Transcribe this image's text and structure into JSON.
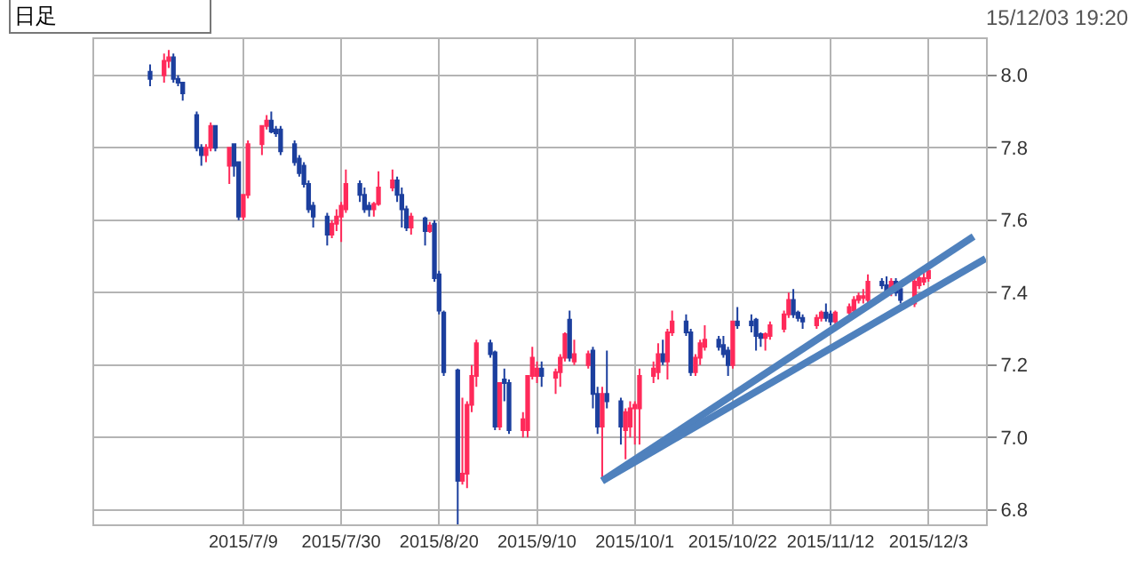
{
  "chart_data": {
    "type": "candlestick",
    "annotations": [
      "日足",
      "15/12/03 19:20"
    ],
    "x": [
      "2015-06-19",
      "2015-06-22",
      "2015-06-23",
      "2015-06-24",
      "2015-06-25",
      "2015-06-26",
      "2015-06-29",
      "2015-06-30",
      "2015-07-01",
      "2015-07-02",
      "2015-07-03",
      "2015-07-06",
      "2015-07-07",
      "2015-07-08",
      "2015-07-09",
      "2015-07-10",
      "2015-07-13",
      "2015-07-14",
      "2015-07-15",
      "2015-07-16",
      "2015-07-17",
      "2015-07-20",
      "2015-07-21",
      "2015-07-22",
      "2015-07-23",
      "2015-07-24",
      "2015-07-27",
      "2015-07-28",
      "2015-07-29",
      "2015-07-30",
      "2015-07-31",
      "2015-08-03",
      "2015-08-04",
      "2015-08-05",
      "2015-08-06",
      "2015-08-07",
      "2015-08-10",
      "2015-08-11",
      "2015-08-12",
      "2015-08-13",
      "2015-08-14",
      "2015-08-17",
      "2015-08-18",
      "2015-08-19",
      "2015-08-20",
      "2015-08-21",
      "2015-08-24",
      "2015-08-25",
      "2015-08-26",
      "2015-08-27",
      "2015-08-28",
      "2015-08-31",
      "2015-09-01",
      "2015-09-02",
      "2015-09-03",
      "2015-09-04",
      "2015-09-07",
      "2015-09-08",
      "2015-09-09",
      "2015-09-10",
      "2015-09-11",
      "2015-09-14",
      "2015-09-15",
      "2015-09-16",
      "2015-09-17",
      "2015-09-18",
      "2015-09-21",
      "2015-09-22",
      "2015-09-23",
      "2015-09-24",
      "2015-09-25",
      "2015-09-28",
      "2015-09-29",
      "2015-09-30",
      "2015-10-01",
      "2015-10-02",
      "2015-10-05",
      "2015-10-06",
      "2015-10-07",
      "2015-10-08",
      "2015-10-09",
      "2015-10-12",
      "2015-10-13",
      "2015-10-14",
      "2015-10-15",
      "2015-10-16",
      "2015-10-19",
      "2015-10-20",
      "2015-10-21",
      "2015-10-22",
      "2015-10-23",
      "2015-10-26",
      "2015-10-27",
      "2015-10-28",
      "2015-10-29",
      "2015-10-30",
      "2015-11-02",
      "2015-11-03",
      "2015-11-04",
      "2015-11-05",
      "2015-11-06",
      "2015-11-09",
      "2015-11-10",
      "2015-11-11",
      "2015-11-12",
      "2015-11-13",
      "2015-11-16",
      "2015-11-17",
      "2015-11-18",
      "2015-11-19",
      "2015-11-20",
      "2015-11-23",
      "2015-11-24",
      "2015-11-25",
      "2015-11-26",
      "2015-11-27",
      "2015-11-30",
      "2015-12-01",
      "2015-12-02",
      "2015-12-03"
    ],
    "ohlc": [
      [
        8.01,
        8.03,
        7.97,
        7.99
      ],
      [
        8.0,
        8.06,
        7.98,
        8.04
      ],
      [
        8.04,
        8.07,
        8.02,
        8.05
      ],
      [
        8.05,
        8.06,
        7.98,
        7.99
      ],
      [
        7.99,
        8.0,
        7.97,
        7.98
      ],
      [
        7.98,
        7.98,
        7.93,
        7.95
      ],
      [
        7.89,
        7.9,
        7.79,
        7.8
      ],
      [
        7.8,
        7.81,
        7.75,
        7.78
      ],
      [
        7.78,
        7.81,
        7.76,
        7.8
      ],
      [
        7.8,
        7.87,
        7.79,
        7.86
      ],
      [
        7.86,
        7.86,
        7.79,
        7.8
      ],
      [
        7.75,
        7.8,
        7.7,
        7.8
      ],
      [
        7.81,
        7.81,
        7.72,
        7.75
      ],
      [
        7.76,
        7.76,
        7.6,
        7.61
      ],
      [
        7.61,
        7.67,
        7.6,
        7.67
      ],
      [
        7.67,
        7.82,
        7.66,
        7.81
      ],
      [
        7.81,
        7.86,
        7.78,
        7.86
      ],
      [
        7.86,
        7.89,
        7.85,
        7.875
      ],
      [
        7.875,
        7.9,
        7.84,
        7.845
      ],
      [
        7.85,
        7.86,
        7.83,
        7.84
      ],
      [
        7.85,
        7.86,
        7.78,
        7.79
      ],
      [
        7.81,
        7.82,
        7.75,
        7.76
      ],
      [
        7.77,
        7.78,
        7.72,
        7.73
      ],
      [
        7.75,
        7.76,
        7.69,
        7.7
      ],
      [
        7.7,
        7.71,
        7.62,
        7.63
      ],
      [
        7.64,
        7.65,
        7.58,
        7.61
      ],
      [
        7.61,
        7.62,
        7.53,
        7.56
      ],
      [
        7.56,
        7.6,
        7.55,
        7.59
      ],
      [
        7.59,
        7.63,
        7.57,
        7.61
      ],
      [
        7.61,
        7.65,
        7.54,
        7.64
      ],
      [
        7.63,
        7.74,
        7.62,
        7.7
      ],
      [
        7.7,
        7.71,
        7.65,
        7.67
      ],
      [
        7.67,
        7.69,
        7.62,
        7.63
      ],
      [
        7.64,
        7.65,
        7.61,
        7.63
      ],
      [
        7.63,
        7.65,
        7.61,
        7.645
      ],
      [
        7.645,
        7.735,
        7.64,
        7.69
      ],
      [
        7.69,
        7.74,
        7.68,
        7.71
      ],
      [
        7.71,
        7.72,
        7.65,
        7.67
      ],
      [
        7.67,
        7.69,
        7.58,
        7.63
      ],
      [
        7.63,
        7.64,
        7.57,
        7.58
      ],
      [
        7.58,
        7.62,
        7.56,
        7.61
      ],
      [
        7.605,
        7.61,
        7.53,
        7.57
      ],
      [
        7.57,
        7.595,
        7.565,
        7.585
      ],
      [
        7.59,
        7.6,
        7.43,
        7.44
      ],
      [
        7.45,
        7.46,
        7.34,
        7.35
      ],
      [
        7.345,
        7.35,
        7.17,
        7.18
      ],
      [
        7.185,
        7.19,
        6.76,
        6.88
      ],
      [
        6.88,
        7.11,
        6.87,
        6.9
      ],
      [
        6.9,
        7.1,
        6.86,
        7.09
      ],
      [
        7.09,
        7.2,
        7.07,
        7.17
      ],
      [
        7.17,
        7.27,
        7.14,
        7.26
      ],
      [
        7.26,
        7.27,
        7.22,
        7.23
      ],
      [
        7.235,
        7.24,
        7.02,
        7.03
      ],
      [
        7.03,
        7.15,
        7.02,
        7.15
      ],
      [
        7.16,
        7.19,
        7.1,
        7.15
      ],
      [
        7.15,
        7.16,
        7.01,
        7.02
      ],
      [
        7.02,
        7.07,
        7.0,
        7.05
      ],
      [
        7.02,
        7.17,
        7.0,
        7.17
      ],
      [
        7.17,
        7.25,
        7.16,
        7.22
      ],
      [
        7.17,
        7.21,
        7.15,
        7.19
      ],
      [
        7.19,
        7.21,
        7.14,
        7.17
      ],
      [
        7.165,
        7.19,
        7.12,
        7.18
      ],
      [
        7.18,
        7.23,
        7.14,
        7.22
      ],
      [
        7.22,
        7.29,
        7.21,
        7.285
      ],
      [
        7.325,
        7.35,
        7.21,
        7.22
      ],
      [
        7.21,
        7.27,
        7.2,
        7.23
      ],
      [
        7.2,
        7.24,
        7.19,
        7.23
      ],
      [
        7.24,
        7.25,
        7.08,
        7.12
      ],
      [
        7.12,
        7.14,
        7.01,
        7.03
      ],
      [
        7.03,
        7.14,
        6.89,
        7.12
      ],
      [
        7.12,
        7.24,
        7.08,
        7.1
      ],
      [
        7.1,
        7.11,
        6.98,
        7.03
      ],
      [
        7.02,
        7.08,
        6.94,
        7.07
      ],
      [
        7.03,
        7.1,
        7.0,
        7.08
      ],
      [
        7.08,
        7.1,
        6.98,
        7.09
      ],
      [
        7.08,
        7.19,
        6.98,
        7.17
      ],
      [
        7.17,
        7.21,
        7.15,
        7.19
      ],
      [
        7.18,
        7.26,
        7.16,
        7.23
      ],
      [
        7.23,
        7.27,
        7.2,
        7.21
      ],
      [
        7.21,
        7.3,
        7.16,
        7.29
      ],
      [
        7.29,
        7.35,
        7.28,
        7.32
      ],
      [
        7.32,
        7.34,
        7.28,
        7.29
      ],
      [
        7.29,
        7.3,
        7.17,
        7.18
      ],
      [
        7.18,
        7.23,
        7.17,
        7.22
      ],
      [
        7.22,
        7.27,
        7.2,
        7.26
      ],
      [
        7.25,
        7.31,
        7.24,
        7.27
      ],
      [
        7.27,
        7.28,
        7.24,
        7.25
      ],
      [
        7.255,
        7.28,
        7.22,
        7.23
      ],
      [
        7.24,
        7.25,
        7.17,
        7.2
      ],
      [
        7.2,
        7.32,
        7.19,
        7.32
      ],
      [
        7.32,
        7.36,
        7.3,
        7.31
      ],
      [
        7.32,
        7.34,
        7.29,
        7.31
      ],
      [
        7.325,
        7.33,
        7.24,
        7.28
      ],
      [
        7.285,
        7.29,
        7.25,
        7.275
      ],
      [
        7.275,
        7.29,
        7.24,
        7.285
      ],
      [
        7.28,
        7.32,
        7.27,
        7.31
      ],
      [
        7.3,
        7.35,
        7.29,
        7.34
      ],
      [
        7.34,
        7.4,
        7.33,
        7.38
      ],
      [
        7.38,
        7.41,
        7.33,
        7.34
      ],
      [
        7.345,
        7.35,
        7.32,
        7.33
      ],
      [
        7.33,
        7.34,
        7.3,
        7.32
      ],
      [
        7.31,
        7.34,
        7.3,
        7.33
      ],
      [
        7.33,
        7.35,
        7.32,
        7.345
      ],
      [
        7.345,
        7.37,
        7.32,
        7.33
      ],
      [
        7.34,
        7.35,
        7.31,
        7.32
      ],
      [
        7.32,
        7.35,
        7.31,
        7.345
      ],
      [
        7.345,
        7.37,
        7.33,
        7.36
      ],
      [
        7.35,
        7.39,
        7.34,
        7.38
      ],
      [
        7.38,
        7.4,
        7.37,
        7.39
      ],
      [
        7.385,
        7.41,
        7.37,
        7.39
      ],
      [
        7.38,
        7.45,
        7.37,
        7.43
      ],
      [
        7.43,
        7.44,
        7.41,
        7.42
      ],
      [
        7.42,
        7.445,
        7.39,
        7.4
      ],
      [
        7.4,
        7.44,
        7.39,
        7.43
      ],
      [
        7.43,
        7.44,
        7.39,
        7.4
      ],
      [
        7.41,
        7.42,
        7.37,
        7.38
      ],
      [
        7.37,
        7.44,
        7.36,
        7.43
      ],
      [
        7.42,
        7.45,
        7.41,
        7.44
      ],
      [
        7.43,
        7.46,
        7.42,
        7.44
      ],
      [
        7.44,
        7.465,
        7.43,
        7.46
      ]
    ],
    "colors": [
      "#1c3f9e",
      "#ff2a5a",
      "#ff2a5a",
      "#1c3f9e",
      "#1c3f9e",
      "#1c3f9e",
      "#1c3f9e",
      "#1c3f9e",
      "#ff2a5a",
      "#ff2a5a",
      "#1c3f9e",
      "#ff2a5a",
      "#1c3f9e",
      "#1c3f9e",
      "#ff2a5a",
      "#ff2a5a",
      "#ff2a5a",
      "#ff2a5a",
      "#1c3f9e",
      "#1c3f9e",
      "#1c3f9e",
      "#1c3f9e",
      "#1c3f9e",
      "#1c3f9e",
      "#1c3f9e",
      "#1c3f9e",
      "#1c3f9e",
      "#ff2a5a",
      "#ff2a5a",
      "#ff2a5a",
      "#ff2a5a",
      "#1c3f9e",
      "#1c3f9e",
      "#1c3f9e",
      "#ff2a5a",
      "#ff2a5a",
      "#ff2a5a",
      "#1c3f9e",
      "#1c3f9e",
      "#1c3f9e",
      "#ff2a5a",
      "#1c3f9e",
      "#ff2a5a",
      "#1c3f9e",
      "#1c3f9e",
      "#1c3f9e",
      "#1c3f9e",
      "#ff2a5a",
      "#ff2a5a",
      "#ff2a5a",
      "#ff2a5a",
      "#1c3f9e",
      "#1c3f9e",
      "#ff2a5a",
      "#1c3f9e",
      "#1c3f9e",
      "#ff2a5a",
      "#ff2a5a",
      "#ff2a5a",
      "#ff2a5a",
      "#1c3f9e",
      "#ff2a5a",
      "#ff2a5a",
      "#ff2a5a",
      "#1c3f9e",
      "#ff2a5a",
      "#ff2a5a",
      "#1c3f9e",
      "#1c3f9e",
      "#ff2a5a",
      "#1c3f9e",
      "#1c3f9e",
      "#ff2a5a",
      "#ff2a5a",
      "#ff2a5a",
      "#ff2a5a",
      "#ff2a5a",
      "#ff2a5a",
      "#1c3f9e",
      "#ff2a5a",
      "#ff2a5a",
      "#1c3f9e",
      "#1c3f9e",
      "#ff2a5a",
      "#ff2a5a",
      "#ff2a5a",
      "#1c3f9e",
      "#1c3f9e",
      "#1c3f9e",
      "#ff2a5a",
      "#1c3f9e",
      "#1c3f9e",
      "#1c3f9e",
      "#1c3f9e",
      "#ff2a5a",
      "#ff2a5a",
      "#ff2a5a",
      "#ff2a5a",
      "#1c3f9e",
      "#1c3f9e",
      "#1c3f9e",
      "#ff2a5a",
      "#ff2a5a",
      "#1c3f9e",
      "#1c3f9e",
      "#ff2a5a",
      "#ff2a5a",
      "#ff2a5a",
      "#ff2a5a",
      "#ff2a5a",
      "#ff2a5a",
      "#1c3f9e",
      "#1c3f9e",
      "#ff2a5a",
      "#1c3f9e",
      "#1c3f9e",
      "#ff2a5a",
      "#ff2a5a",
      "#ff2a5a",
      "#ff2a5a"
    ],
    "series": [
      {
        "type": "line",
        "x": [
          "2015-09-24",
          "2015-12-12T16:00"
        ],
        "values": [
          6.88,
          7.555
        ],
        "color": "#4f81bd"
      },
      {
        "type": "line",
        "x": [
          "2015-09-24",
          "2015-12-15T06:00"
        ],
        "values": [
          6.88,
          7.494
        ],
        "color": "#4f81bd"
      }
    ],
    "xlim": [
      "2015-06-07",
      "2015-12-15T08:00"
    ],
    "xticks": [
      {
        "value": "2015-07-09",
        "label": "2015/7/9"
      },
      {
        "value": "2015-07-30",
        "label": "2015/7/30"
      },
      {
        "value": "2015-08-20",
        "label": "2015/8/20"
      },
      {
        "value": "2015-09-10",
        "label": "2015/9/10"
      },
      {
        "value": "2015-10-01",
        "label": "2015/10/1"
      },
      {
        "value": "2015-10-22",
        "label": "2015/10/22"
      },
      {
        "value": "2015-11-12",
        "label": "2015/11/12"
      },
      {
        "value": "2015-12-03",
        "label": "2015/12/3"
      }
    ],
    "ylim": [
      6.76,
      8.1
    ],
    "yticks": [
      {
        "value": 6.8,
        "label": "6.8"
      },
      {
        "value": 7.0,
        "label": "7.0"
      },
      {
        "value": 7.2,
        "label": "7.2"
      },
      {
        "value": 7.4,
        "label": "7.4"
      },
      {
        "value": 7.6,
        "label": "7.6"
      },
      {
        "value": 7.8,
        "label": "7.8"
      },
      {
        "value": 8.0,
        "label": "8.0"
      }
    ],
    "grid": true
  }
}
